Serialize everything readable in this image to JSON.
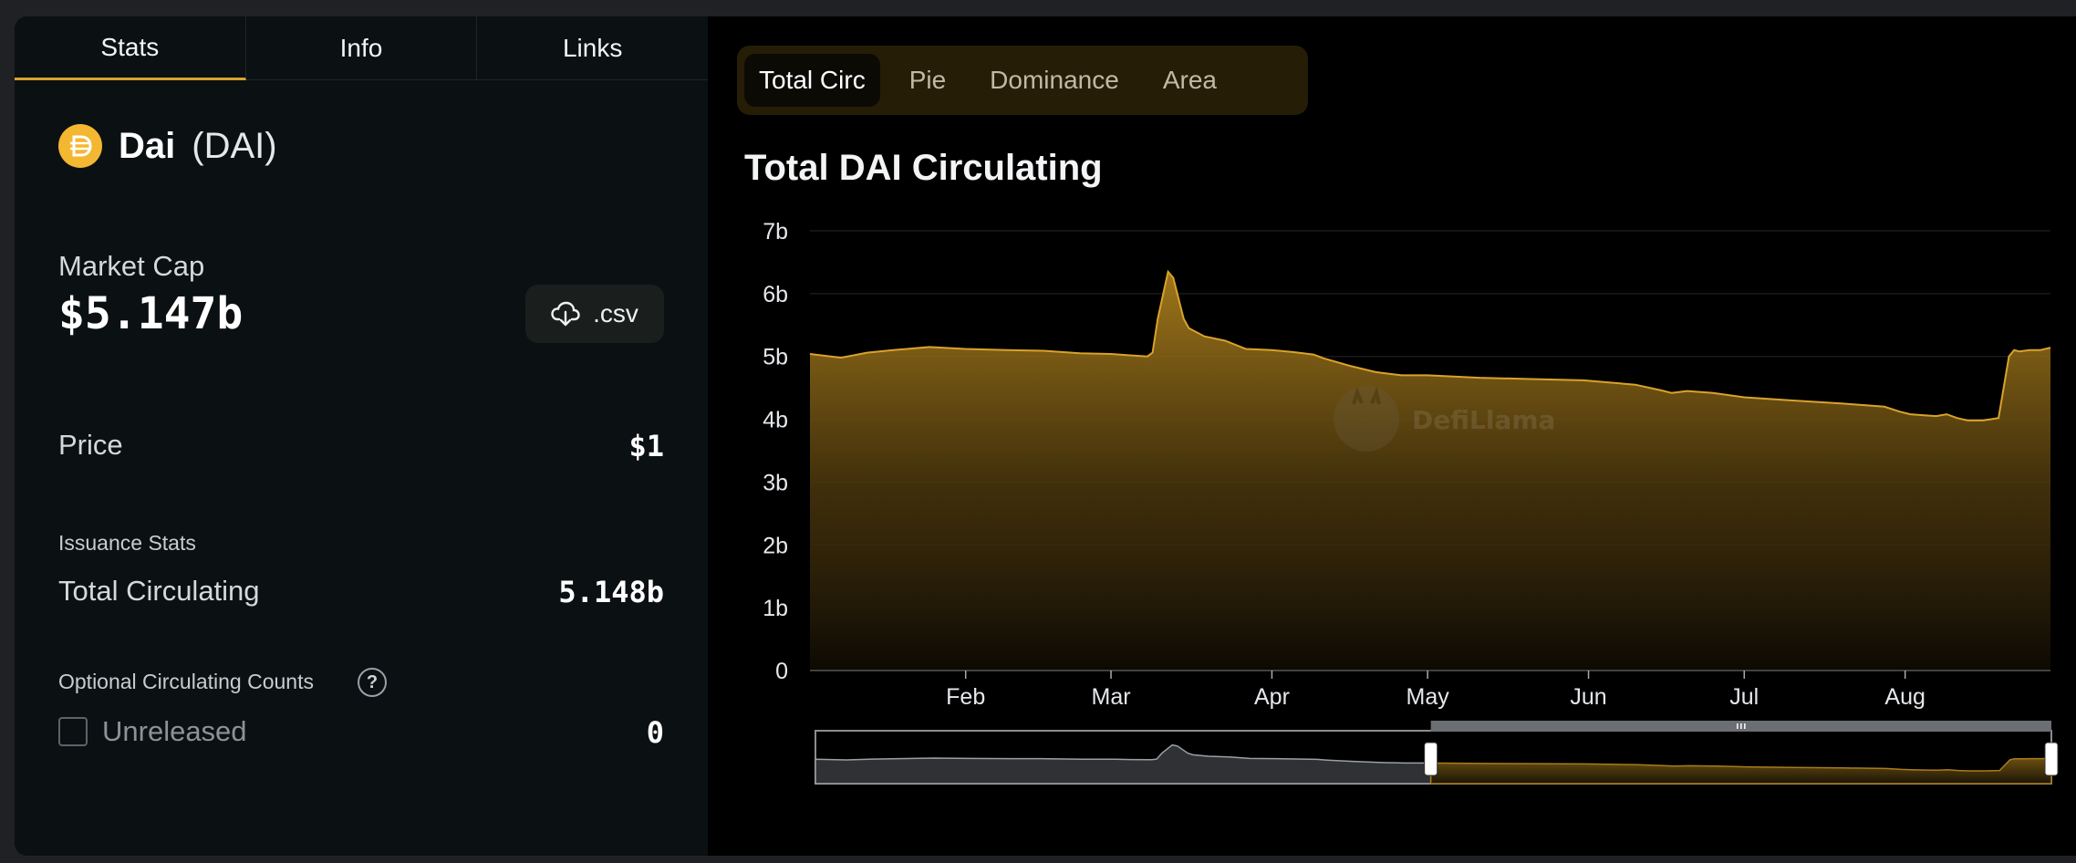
{
  "tabs": [
    "Stats",
    "Info",
    "Links"
  ],
  "coin": {
    "name": "Dai",
    "symbol": "(DAI)",
    "icon": "dai-icon",
    "brand_color": "#f4b731"
  },
  "market_cap": {
    "label": "Market Cap",
    "value": "$5.147b"
  },
  "csv_button": {
    "label": ".csv",
    "icon": "download-cloud-icon"
  },
  "price": {
    "label": "Price",
    "value": "$1"
  },
  "issuance": {
    "section_label": "Issuance Stats",
    "total_label": "Total Circulating",
    "total_value": "5.148b"
  },
  "optional": {
    "label": "Optional Circulating Counts",
    "help_icon": "?",
    "unreleased_label": "Unreleased",
    "unreleased_value": "0"
  },
  "chart_tabs": [
    "Total Circ",
    "Pie",
    "Dominance",
    "Area"
  ],
  "accent_color": "#d9a32b",
  "chart_data": {
    "type": "area",
    "title": "Total DAI Circulating",
    "watermark": "DefiLlama",
    "y_ticks": [
      "0",
      "1b",
      "2b",
      "3b",
      "4b",
      "5b",
      "6b",
      "7b"
    ],
    "ylim": [
      0,
      7
    ],
    "y_unit": "billions",
    "x_ticks": [
      {
        "label": "Feb",
        "day": 31
      },
      {
        "label": "Mar",
        "day": 59
      },
      {
        "label": "Apr",
        "day": 90
      },
      {
        "label": "May",
        "day": 120
      },
      {
        "label": "Jun",
        "day": 151
      },
      {
        "label": "Jul",
        "day": 181
      },
      {
        "label": "Aug",
        "day": 212
      }
    ],
    "xlim": [
      1,
      240
    ],
    "x": [
      1,
      5,
      7,
      12,
      17,
      24,
      31,
      39,
      46,
      53,
      59,
      62,
      66,
      67,
      68,
      70,
      71,
      73,
      74,
      77,
      81,
      85,
      90,
      94,
      98,
      100,
      105,
      110,
      115,
      120,
      130,
      140,
      150,
      160,
      165,
      167,
      170,
      175,
      181,
      190,
      200,
      208,
      211,
      213,
      216,
      218,
      220,
      222,
      224,
      227,
      230,
      232,
      233,
      234,
      236,
      238,
      240
    ],
    "values": [
      5.04,
      5.0,
      4.98,
      5.06,
      5.1,
      5.15,
      5.12,
      5.1,
      5.09,
      5.05,
      5.04,
      5.02,
      5.0,
      5.06,
      5.6,
      6.35,
      6.25,
      5.6,
      5.45,
      5.32,
      5.25,
      5.12,
      5.1,
      5.07,
      5.03,
      4.97,
      4.85,
      4.75,
      4.7,
      4.7,
      4.66,
      4.64,
      4.62,
      4.55,
      4.46,
      4.42,
      4.45,
      4.42,
      4.35,
      4.3,
      4.25,
      4.2,
      4.12,
      4.08,
      4.06,
      4.05,
      4.08,
      4.02,
      3.98,
      3.98,
      4.02,
      5.0,
      5.1,
      5.08,
      5.1,
      5.1,
      5.14
    ],
    "brush": {
      "from_day": 120,
      "to_day": 240
    },
    "brush_overview_label": "Total DAI Circulating range selector"
  }
}
